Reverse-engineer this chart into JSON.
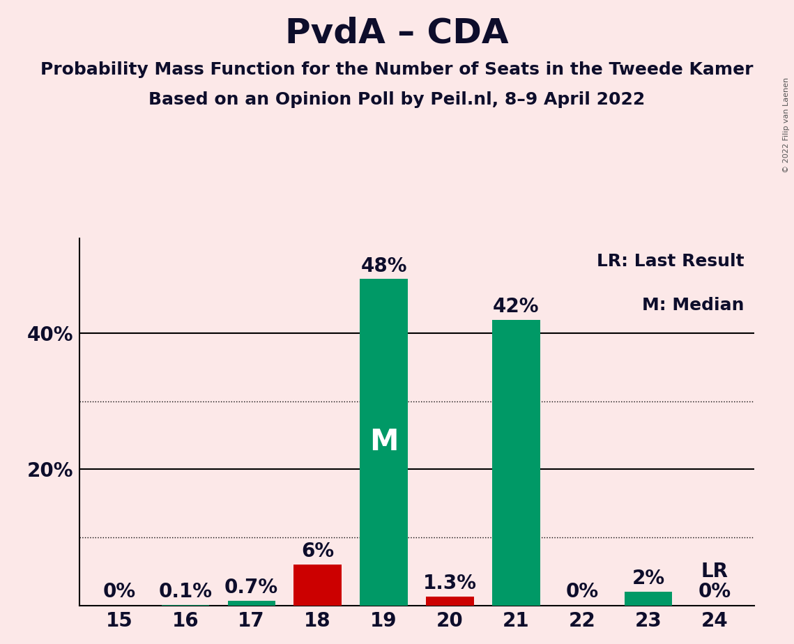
{
  "title": "PvdA – CDA",
  "subtitle1": "Probability Mass Function for the Number of Seats in the Tweede Kamer",
  "subtitle2": "Based on an Opinion Poll by Peil.nl, 8–9 April 2022",
  "copyright_text": "© 2022 Filip van Laenen",
  "categories": [
    15,
    16,
    17,
    18,
    19,
    20,
    21,
    22,
    23,
    24
  ],
  "values": [
    0.0,
    0.1,
    0.7,
    6.0,
    48.0,
    1.3,
    42.0,
    0.0,
    2.0,
    0.0
  ],
  "bar_colors": [
    "#009966",
    "#009966",
    "#009966",
    "#cc0000",
    "#009966",
    "#cc0000",
    "#009966",
    "#009966",
    "#009966",
    "#009966"
  ],
  "label_texts": [
    "0%",
    "0.1%",
    "0.7%",
    "6%",
    "48%",
    "1.3%",
    "42%",
    "0%",
    "2%",
    "0%"
  ],
  "median_bar_index": 4,
  "median_label": "M",
  "lr_bar_index": 9,
  "lr_label": "LR",
  "legend_lr": "LR: Last Result",
  "legend_m": "M: Median",
  "background_color": "#fce8e8",
  "bar_color_green": "#009966",
  "bar_color_red": "#cc0000",
  "ylim": [
    0,
    54
  ],
  "solid_gridlines": [
    20.0,
    40.0
  ],
  "dotted_gridlines": [
    10.0,
    30.0
  ],
  "title_fontsize": 36,
  "subtitle_fontsize": 18,
  "tick_fontsize": 20,
  "bar_label_fontsize": 20,
  "legend_fontsize": 18,
  "median_label_fontsize": 30,
  "text_color": "#0d0d2b"
}
